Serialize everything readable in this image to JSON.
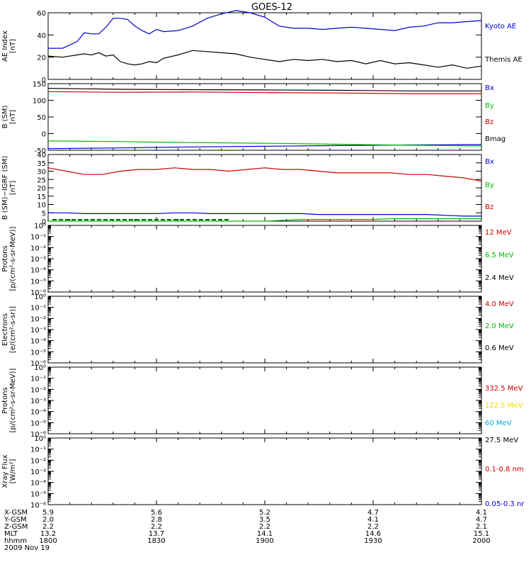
{
  "title": "GOES-12",
  "colors": {
    "axis": "#000000",
    "black": "#000000",
    "blue": "#0000cc",
    "red": "#cc0000",
    "green": "#00bb00",
    "yellow": "#eedd00",
    "cyan": "#00aadd",
    "darkgreen": "#006600"
  },
  "chart_data": [
    {
      "type": "line",
      "ylabel": [
        "AE Index",
        "[nT]"
      ],
      "ylim": [
        0,
        60
      ],
      "yticks": [
        0,
        20,
        40,
        60
      ],
      "scale": "linear",
      "x": [
        0,
        4,
        8,
        10,
        12,
        14,
        16,
        18,
        20,
        22,
        24,
        26,
        28,
        30,
        32,
        36,
        40,
        44,
        48,
        52,
        56,
        60,
        64,
        68,
        72,
        76,
        80,
        84,
        88,
        92,
        96,
        100,
        104,
        108,
        112,
        116,
        120
      ],
      "series": [
        {
          "name": "Kyoto AE",
          "color": "#0000cc",
          "values": [
            28,
            28,
            34,
            42,
            41,
            41,
            47,
            55,
            55,
            54,
            48,
            44,
            41,
            45,
            43,
            44,
            48,
            55,
            59,
            62,
            60,
            56,
            48,
            46,
            46,
            45,
            46,
            47,
            46,
            45,
            44,
            47,
            48,
            51,
            51,
            52,
            53
          ]
        },
        {
          "name": "Themis AE",
          "color": "#000000",
          "values": [
            21,
            20,
            22,
            23,
            22,
            24,
            21,
            22,
            16,
            14,
            13,
            14,
            16,
            15,
            19,
            22,
            26,
            25,
            24,
            23,
            20,
            18,
            16,
            18,
            17,
            18,
            16,
            17,
            14,
            17,
            14,
            15,
            13,
            11,
            13,
            10,
            12
          ]
        }
      ]
    },
    {
      "type": "line",
      "ylabel": [
        "B (SM)",
        "[nT]"
      ],
      "ylim": [
        -50,
        150
      ],
      "yticks": [
        -50,
        0,
        50,
        100,
        150
      ],
      "scale": "linear",
      "x": [
        0,
        20,
        40,
        60,
        80,
        100,
        120
      ],
      "series": [
        {
          "name": "Bx",
          "color": "#0000cc",
          "values": [
            -45,
            -43,
            -40,
            -38,
            -36,
            -34,
            -33
          ]
        },
        {
          "name": "By",
          "color": "#00bb00",
          "values": [
            -22,
            -24,
            -27,
            -29,
            -32,
            -35,
            -37
          ]
        },
        {
          "name": "Bz",
          "color": "#cc0000",
          "values": [
            126,
            124,
            125,
            123,
            122,
            120,
            120
          ]
        },
        {
          "name": "Bmag",
          "color": "#000000",
          "values": [
            136,
            133,
            132,
            131,
            130,
            128,
            128
          ]
        }
      ]
    },
    {
      "type": "line",
      "ylabel": [
        "B (SM)−IGRF (SM)",
        "[nT]"
      ],
      "ylim": [
        0,
        40
      ],
      "yticks": [
        0,
        5,
        10,
        15,
        20,
        25,
        30,
        35,
        40
      ],
      "scale": "linear",
      "x": [
        0,
        5,
        10,
        15,
        20,
        25,
        30,
        35,
        40,
        45,
        50,
        55,
        60,
        65,
        70,
        75,
        80,
        85,
        90,
        95,
        100,
        105,
        110,
        115,
        120
      ],
      "series": [
        {
          "name": "Bx",
          "color": "#0000cc",
          "values": [
            5,
            5,
            4.5,
            4.5,
            4.5,
            4.5,
            4.5,
            5,
            5,
            4.5,
            4.5,
            4.5,
            4.5,
            4.5,
            4.5,
            4,
            4,
            4,
            4,
            4,
            4,
            4,
            3.5,
            3,
            3
          ]
        },
        {
          "name": "By",
          "color": "#00bb00",
          "values": [
            0,
            0,
            0,
            0,
            0,
            0,
            0,
            0,
            0,
            0,
            0,
            0,
            0,
            0.5,
            1,
            1,
            1,
            1,
            1,
            1.5,
            1.5,
            1.5,
            1.5,
            1.5,
            1.5
          ]
        },
        {
          "name": "Bz",
          "color": "#cc0000",
          "values": [
            32,
            30,
            28,
            28,
            30,
            31,
            31,
            32,
            31,
            31,
            30,
            31,
            32,
            31,
            31,
            30,
            29,
            29,
            29,
            29,
            28,
            28,
            27,
            26,
            24
          ]
        }
      ]
    },
    {
      "type": "line",
      "ylabel": [
        "Protons",
        "[p/(cm²-s-sr-MeV)]"
      ],
      "ylim": [
        1e-06,
        1
      ],
      "scale": "log",
      "series": [
        {
          "name": "12 MeV",
          "color": "#cc0000"
        },
        {
          "name": "6.5 MeV",
          "color": "#00bb00"
        },
        {
          "name": "2.4 MeV",
          "color": "#000000"
        }
      ]
    },
    {
      "type": "line",
      "ylabel": [
        "Electrons",
        "[e/(cm²-s-sr)]"
      ],
      "ylim": [
        1e-06,
        1
      ],
      "scale": "log",
      "series": [
        {
          "name": "4.0 MeV",
          "color": "#cc0000"
        },
        {
          "name": "2.0 MeV",
          "color": "#00bb00"
        },
        {
          "name": "0.6 MeV",
          "color": "#000000"
        }
      ]
    },
    {
      "type": "line",
      "ylabel": [
        "Protons",
        "[p/(cm²-s-sr-MeV)]"
      ],
      "ylim": [
        1e-06,
        1
      ],
      "scale": "log",
      "series": [
        {
          "name": "332.5 MeV",
          "color": "#cc0000"
        },
        {
          "name": "122.5 MeV",
          "color": "#eedd00"
        },
        {
          "name": "60 MeV",
          "color": "#00aadd"
        },
        {
          "name": "27.5 MeV",
          "color": "#000000"
        }
      ]
    },
    {
      "type": "line",
      "ylabel": [
        "Xray Flux",
        "[W/m²]"
      ],
      "ylim": [
        1e-06,
        1
      ],
      "scale": "log",
      "series": [
        {
          "name": "0.1-0.8 nm",
          "color": "#cc0000"
        },
        {
          "name": "0.05-0.3 nr",
          "color": "#0000cc"
        }
      ]
    }
  ],
  "log_tick_labels": [
    "10⁰",
    "10⁻¹",
    "10⁻²",
    "10⁻³",
    "10⁻⁴",
    "10⁻⁵",
    "10⁻⁶"
  ],
  "ephemeris": {
    "rows": [
      {
        "label": "X-GSM",
        "values": [
          "5.9",
          "5.6",
          "5.2",
          "4.7",
          "4.1"
        ]
      },
      {
        "label": "Y-GSM",
        "values": [
          "2.0",
          "2.8",
          "3.5",
          "4.1",
          "4.7"
        ]
      },
      {
        "label": "Z-GSM",
        "values": [
          "2.2",
          "2.2",
          "2.2",
          "2.2",
          "2.1"
        ]
      },
      {
        "label": "MLT",
        "values": [
          "13.2",
          "13.7",
          "14.1",
          "14.6",
          "15.1"
        ]
      },
      {
        "label": "hhmm",
        "values": [
          "1800",
          "1830",
          "1900",
          "1930",
          "2000"
        ]
      }
    ],
    "date": "2009 Nov 19"
  }
}
